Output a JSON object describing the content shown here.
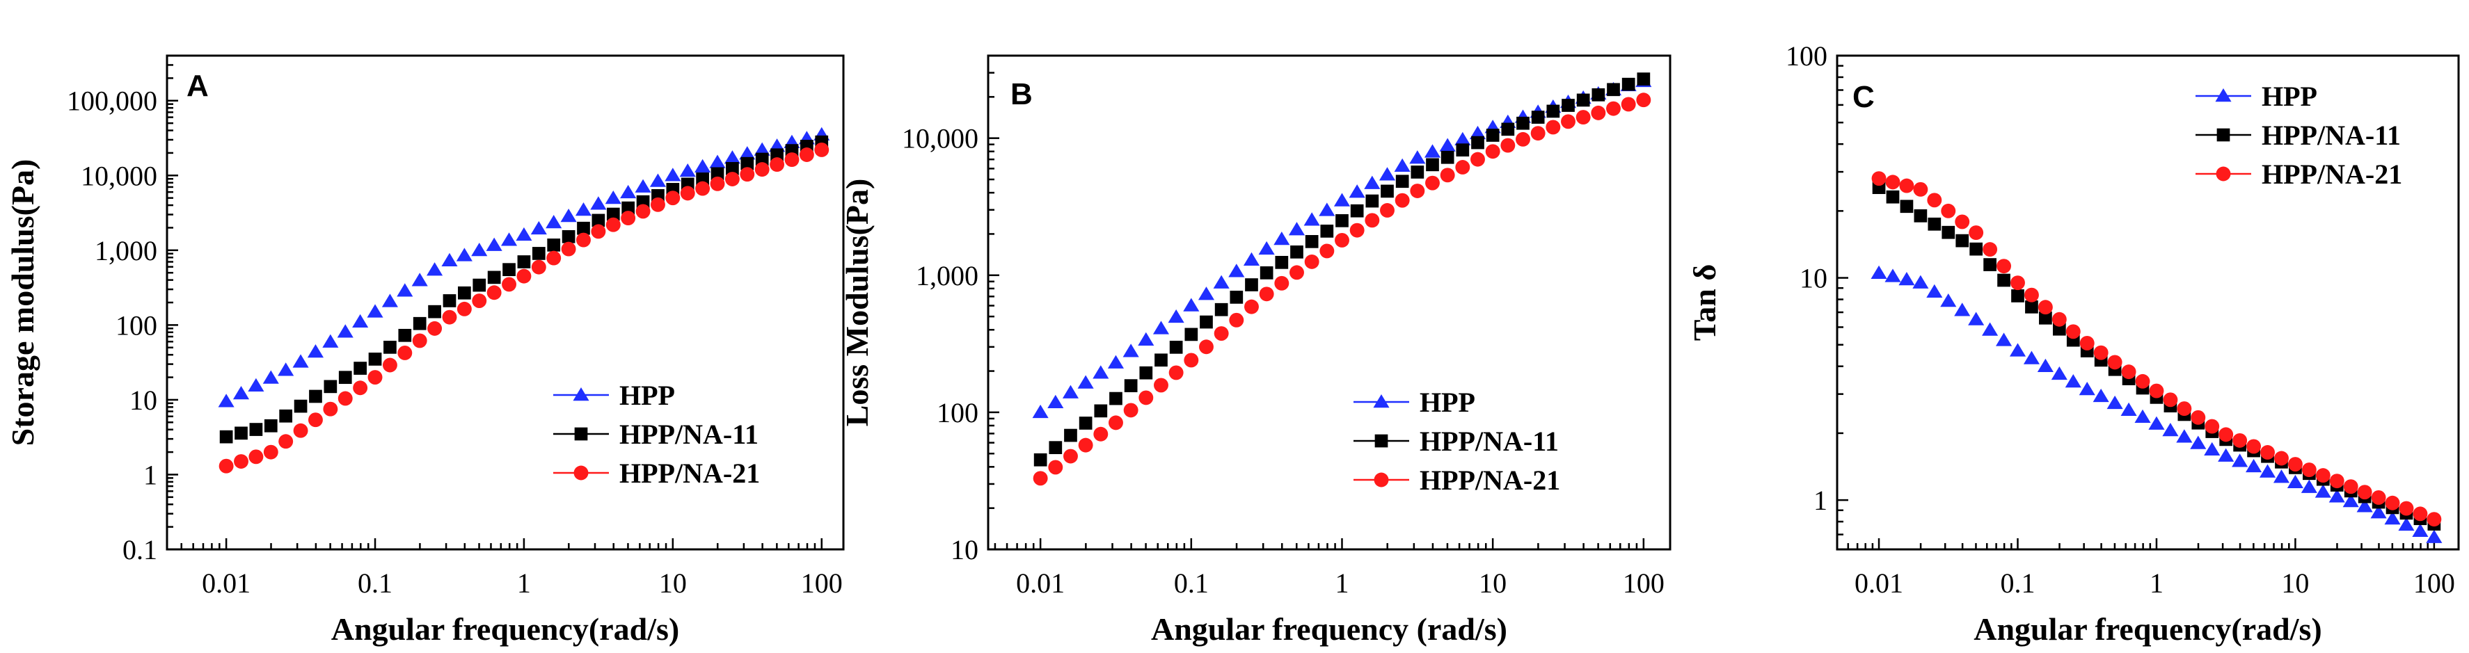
{
  "figure": {
    "colors": {
      "HPP": "#1f2fff",
      "HPP/NA-11": "#000000",
      "HPP/NA-21": "#ff1a1a",
      "axis": "#000000"
    }
  },
  "chart_data": [
    {
      "panel": "A",
      "type": "scatter",
      "xscale": "log",
      "yscale": "log",
      "xlabel": "Angular frequency(rad/s)",
      "ylabel": "Storage modulus(Pa)",
      "xlim": [
        0.004,
        140
      ],
      "ylim": [
        0.1,
        400000
      ],
      "xticks": [
        0.01,
        0.1,
        1,
        10,
        100
      ],
      "xtick_labels": [
        "0.01",
        "0.1",
        "1",
        "10",
        "100"
      ],
      "yticks": [
        0.1,
        1,
        10,
        100,
        1000,
        10000,
        100000
      ],
      "ytick_labels": [
        "0.1",
        "1",
        "10",
        "100",
        "1,000",
        "10,000",
        "100,000"
      ],
      "legend_position": "lower-right",
      "series": [
        {
          "name": "HPP",
          "marker": "triangle",
          "anchors": [
            [
              0.01,
              9.5
            ],
            [
              0.03,
              30
            ],
            [
              0.1,
              150
            ],
            [
              0.3,
              700
            ],
            [
              1,
              1600
            ],
            [
              3,
              4000
            ],
            [
              10,
              10000
            ],
            [
              30,
              19000
            ],
            [
              100,
              35000
            ]
          ]
        },
        {
          "name": "HPP/NA-11",
          "marker": "square",
          "anchors": [
            [
              0.01,
              3.2
            ],
            [
              0.02,
              4.5
            ],
            [
              0.05,
              15
            ],
            [
              0.1,
              35
            ],
            [
              0.3,
              200
            ],
            [
              1,
              700
            ],
            [
              3,
              2400
            ],
            [
              10,
              6500
            ],
            [
              30,
              14000
            ],
            [
              100,
              28000
            ]
          ]
        },
        {
          "name": "HPP/NA-21",
          "marker": "circle",
          "anchors": [
            [
              0.01,
              1.3
            ],
            [
              0.02,
              2
            ],
            [
              0.05,
              7.5
            ],
            [
              0.1,
              20
            ],
            [
              0.3,
              120
            ],
            [
              1,
              450
            ],
            [
              3,
              1700
            ],
            [
              10,
              5000
            ],
            [
              30,
              10000
            ],
            [
              100,
              22000
            ]
          ]
        }
      ]
    },
    {
      "panel": "B",
      "type": "scatter",
      "xscale": "log",
      "yscale": "log",
      "xlabel": "Angular frequency (rad/s)",
      "ylabel": "Loss Modulus(Pa)",
      "xlim": [
        0.0045,
        150
      ],
      "ylim": [
        10,
        40000
      ],
      "xticks": [
        0.01,
        0.1,
        1,
        10,
        100
      ],
      "xtick_labels": [
        "0.01",
        "0.1",
        "1",
        "10",
        "100"
      ],
      "yticks": [
        10,
        100,
        1000,
        10000
      ],
      "ytick_labels": [
        "10",
        "100",
        "1,000",
        "10,000"
      ],
      "legend_position": "lower-right",
      "series": [
        {
          "name": "HPP",
          "marker": "triangle",
          "anchors": [
            [
              0.01,
              100
            ],
            [
              0.03,
              220
            ],
            [
              0.1,
              600
            ],
            [
              0.3,
              1500
            ],
            [
              1,
              3500
            ],
            [
              3,
              7000
            ],
            [
              10,
              12000
            ],
            [
              30,
              18000
            ],
            [
              100,
              26000
            ]
          ]
        },
        {
          "name": "HPP/NA-11",
          "marker": "square",
          "anchors": [
            [
              0.01,
              45
            ],
            [
              0.03,
              120
            ],
            [
              0.1,
              370
            ],
            [
              0.3,
              1000
            ],
            [
              1,
              2500
            ],
            [
              3,
              5500
            ],
            [
              10,
              10500
            ],
            [
              30,
              17000
            ],
            [
              100,
              27000
            ]
          ]
        },
        {
          "name": "HPP/NA-21",
          "marker": "circle",
          "anchors": [
            [
              0.01,
              33
            ],
            [
              0.03,
              80
            ],
            [
              0.1,
              240
            ],
            [
              0.3,
              700
            ],
            [
              1,
              1800
            ],
            [
              3,
              4000
            ],
            [
              10,
              8000
            ],
            [
              30,
              13000
            ],
            [
              100,
              19000
            ]
          ]
        }
      ]
    },
    {
      "panel": "C",
      "type": "scatter",
      "xscale": "log",
      "yscale": "log",
      "xlabel": "Angular frequency(rad/s)",
      "ylabel": "Tan δ",
      "xlim": [
        0.005,
        150
      ],
      "ylim": [
        0.6,
        100
      ],
      "xticks": [
        0.01,
        0.1,
        1,
        10,
        100
      ],
      "xtick_labels": [
        "0.01",
        "0.1",
        "1",
        "10",
        "100"
      ],
      "yticks": [
        1,
        10,
        100
      ],
      "ytick_labels": [
        "1",
        "10",
        "100"
      ],
      "legend_position": "top-right",
      "series": [
        {
          "name": "HPP",
          "marker": "triangle",
          "anchors": [
            [
              0.01,
              10.5
            ],
            [
              0.02,
              9.5
            ],
            [
              0.05,
              6.5
            ],
            [
              0.1,
              4.7
            ],
            [
              0.3,
              3.2
            ],
            [
              1,
              2.2
            ],
            [
              3,
              1.6
            ],
            [
              10,
              1.2
            ],
            [
              30,
              0.95
            ],
            [
              100,
              0.68
            ]
          ]
        },
        {
          "name": "HPP/NA-11",
          "marker": "square",
          "anchors": [
            [
              0.01,
              25.5
            ],
            [
              0.02,
              19
            ],
            [
              0.05,
              13.5
            ],
            [
              0.1,
              8.3
            ],
            [
              0.3,
              4.8
            ],
            [
              1,
              2.9
            ],
            [
              3,
              1.9
            ],
            [
              10,
              1.4
            ],
            [
              30,
              1.05
            ],
            [
              100,
              0.78
            ]
          ]
        },
        {
          "name": "HPP/NA-21",
          "marker": "circle",
          "anchors": [
            [
              0.01,
              28
            ],
            [
              0.02,
              25
            ],
            [
              0.05,
              16
            ],
            [
              0.1,
              9.5
            ],
            [
              0.3,
              5.2
            ],
            [
              1,
              3.1
            ],
            [
              3,
              2.0
            ],
            [
              10,
              1.45
            ],
            [
              30,
              1.1
            ],
            [
              100,
              0.82
            ]
          ]
        }
      ]
    }
  ]
}
